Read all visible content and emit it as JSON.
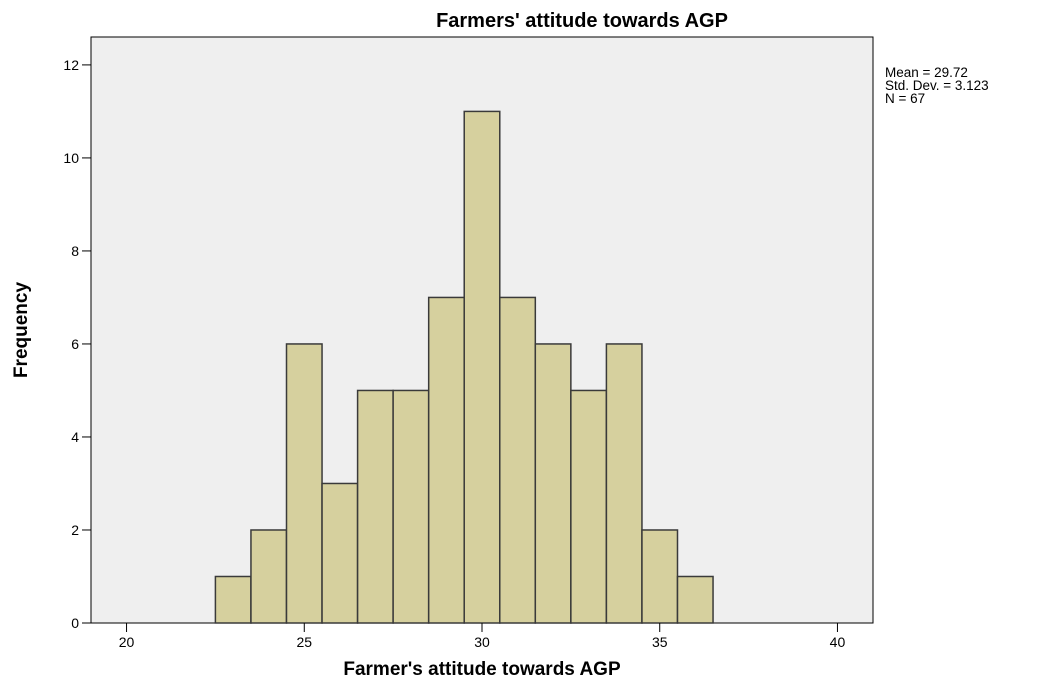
{
  "chart_data": {
    "type": "bar",
    "title": "Farmers' attitude towards AGP",
    "xlabel": "Farmer's attitude towards AGP",
    "ylabel": "Frequency",
    "x": [
      23,
      24,
      25,
      26,
      27,
      28,
      29,
      30,
      31,
      32,
      33,
      34,
      35,
      36
    ],
    "values": [
      1,
      2,
      6,
      3,
      5,
      5,
      7,
      11,
      7,
      6,
      5,
      6,
      2,
      1
    ],
    "bin_width": 1,
    "xlim": [
      19,
      41
    ],
    "ylim": [
      0,
      12.6
    ],
    "xticks": [
      20,
      25,
      30,
      35,
      40
    ],
    "yticks": [
      0,
      2,
      4,
      6,
      8,
      10,
      12
    ],
    "grid": false,
    "colors": {
      "bar_fill": "#d6d09e",
      "bar_stroke": "#3a3a3a",
      "plot_background": "#efefef"
    },
    "stats": {
      "mean": "Mean = 29.72",
      "std_dev": "Std. Dev. = 3.123",
      "n": "N = 67"
    }
  }
}
